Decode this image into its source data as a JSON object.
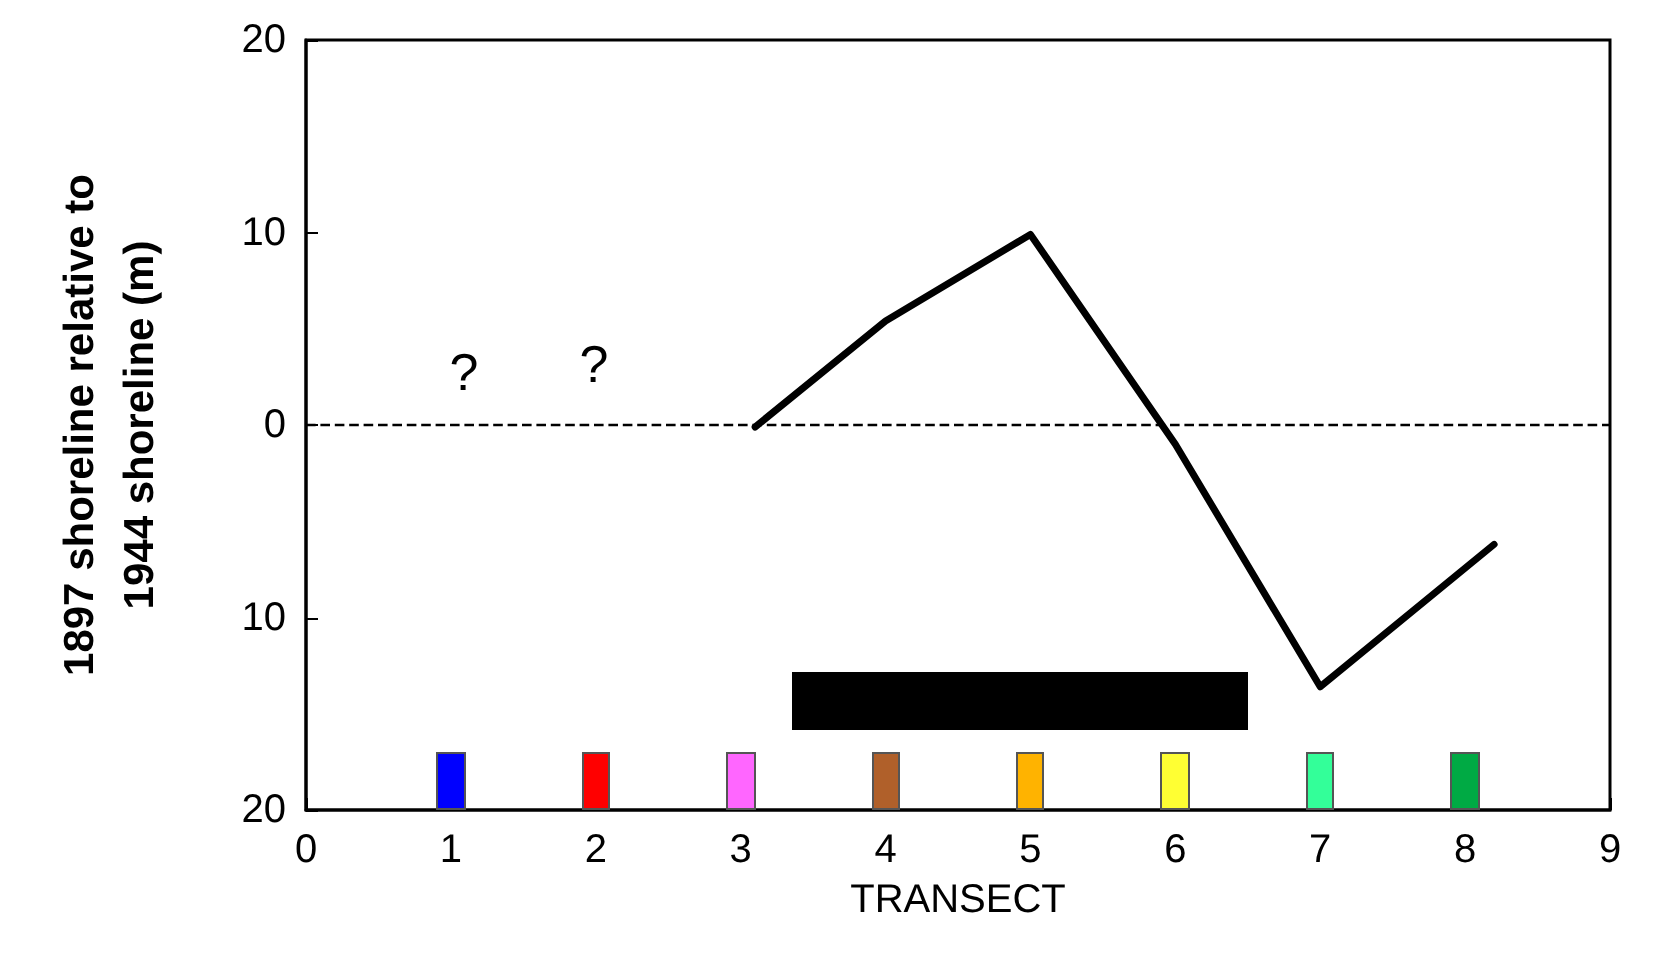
{
  "chart_data": {
    "type": "line",
    "xlabel": "TRANSECT",
    "ylabel": "1897 shoreline relative to\n1944 shoreline (m)",
    "series": [
      {
        "color": "#000000",
        "x": [
          3.1,
          4,
          5,
          6,
          7,
          8.2
        ],
        "values": [
          -0.1,
          5.4,
          9.9,
          -1,
          -13.6,
          -6.2
        ]
      }
    ],
    "xlim": [
      0,
      9
    ],
    "xticks": [
      0,
      1,
      2,
      3,
      4,
      5,
      6,
      7,
      8,
      9
    ],
    "ylim": [
      -20,
      20
    ],
    "yticks": [
      {
        "value": -20,
        "label": "20"
      },
      {
        "value": -10,
        "label": "10"
      },
      0,
      10,
      20
    ],
    "ref_lines": [
      {
        "axis": "y",
        "value": 0,
        "color": "#000000",
        "line_style": "dashed"
      }
    ],
    "annotations": [
      "?",
      "?"
    ],
    "grid": false,
    "marker": "none",
    "line_style": "solid"
  }
}
